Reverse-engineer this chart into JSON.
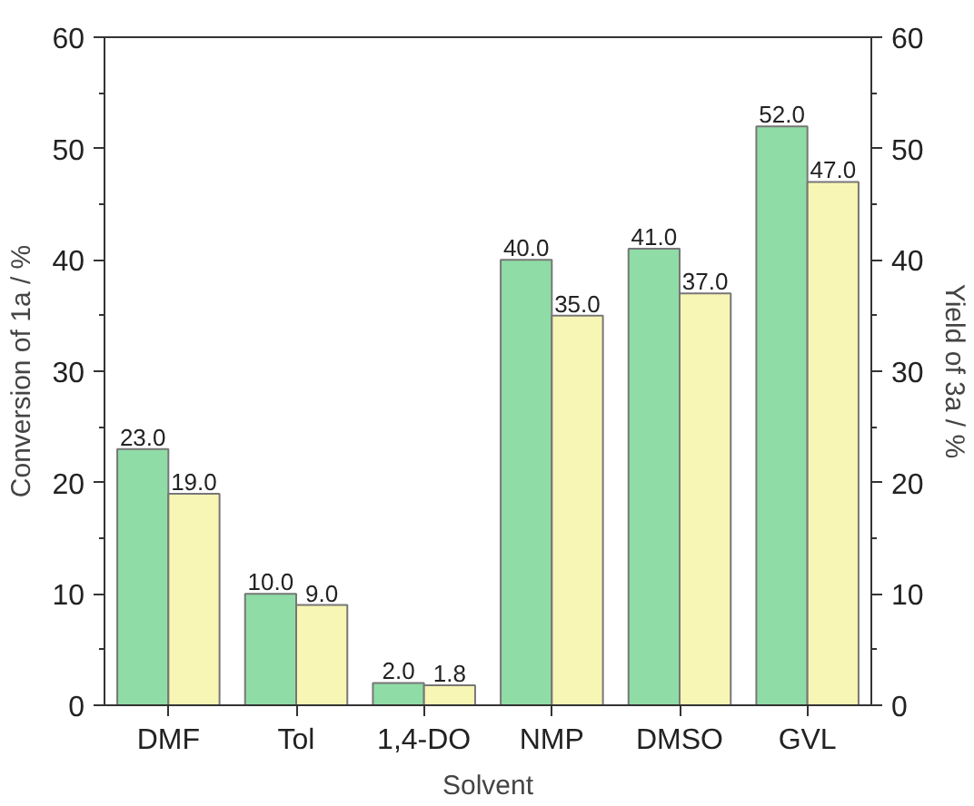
{
  "chart_data": {
    "type": "bar",
    "xlabel": "Solvent",
    "ylabel": "Conversion of 1a / %",
    "y2label": "Yield of 3a / %",
    "categories": [
      "DMF",
      "Tol",
      "1,4-DO",
      "NMP",
      "DMSO",
      "GVL"
    ],
    "series": [
      {
        "color": "#8fdca6",
        "values": [
          23.0,
          10.0,
          2.0,
          40.0,
          41.0,
          52.0
        ],
        "value_labels": [
          "23.0",
          "10.0",
          "2.0",
          "40.0",
          "41.0",
          "52.0"
        ]
      },
      {
        "color": "#f8f6b4",
        "values": [
          19.0,
          9.0,
          1.8,
          35.0,
          37.0,
          47.0
        ],
        "value_labels": [
          "19.0",
          "9.0",
          "1.8",
          "35.0",
          "37.0",
          "47.0"
        ]
      }
    ],
    "ylim": [
      0,
      60
    ],
    "yticks": [
      0,
      {
        "value": 5,
        "label": null
      },
      10,
      {
        "value": 15,
        "label": null
      },
      20,
      {
        "value": 25,
        "label": null
      },
      30,
      {
        "value": 35,
        "label": null
      },
      40,
      {
        "value": 45,
        "label": null
      },
      50,
      {
        "value": 55,
        "label": null
      },
      60
    ],
    "y2lim": [
      0,
      60
    ],
    "y2ticks": [
      0,
      {
        "value": 5,
        "label": null
      },
      10,
      {
        "value": 15,
        "label": null
      },
      20,
      {
        "value": 25,
        "label": null
      },
      30,
      {
        "value": 35,
        "label": null
      },
      40,
      {
        "value": 45,
        "label": null
      },
      50,
      {
        "value": 55,
        "label": null
      },
      60
    ],
    "grid": false
  }
}
